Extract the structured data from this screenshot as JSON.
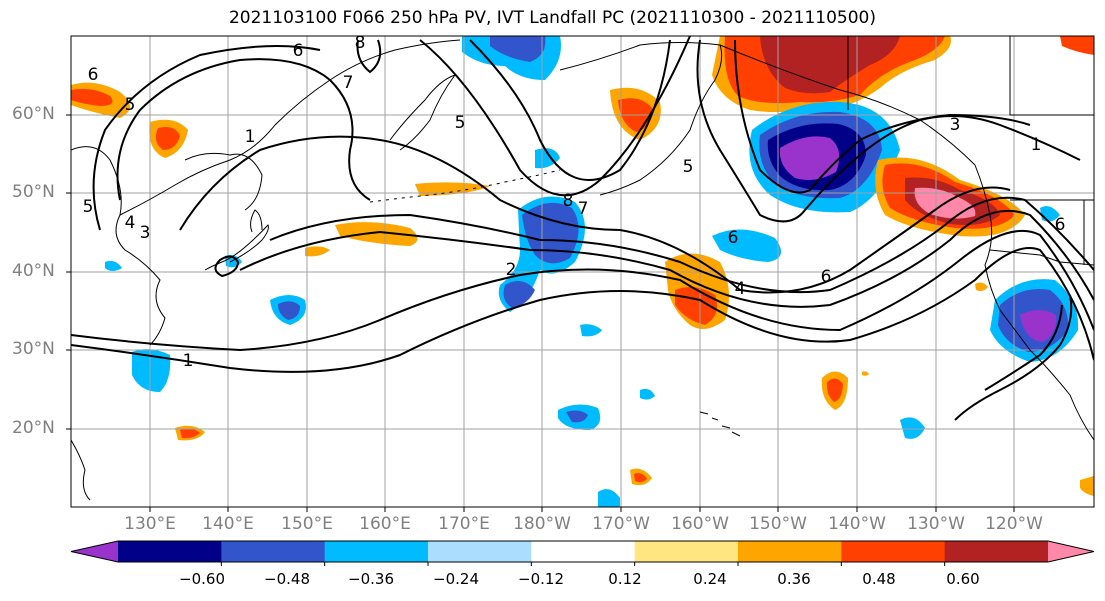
{
  "title": "2021103100 F066 250 hPa PV, IVT Landfall PC (2021110300 - 2021110500)",
  "lat_labels": [
    "60°N",
    "50°N",
    "40°N",
    "30°N",
    "20°N"
  ],
  "lon_labels": [
    "130°E",
    "140°E",
    "150°E",
    "160°E",
    "170°E",
    "180°W",
    "170°W",
    "160°W",
    "150°W",
    "140°W",
    "130°W",
    "120°W"
  ],
  "colorbar": {
    "colors": [
      "#9933cc",
      "#000088",
      "#3355cc",
      "#00bbff",
      "#aaddff",
      "#ffffff",
      "#ffe680",
      "#ffa500",
      "#ff4000",
      "#b22222",
      "#ff88aa"
    ],
    "tick_labels": [
      "−0.60",
      "−0.48",
      "−0.36",
      "−0.24",
      "−0.12",
      "0.12",
      "0.24",
      "0.36",
      "0.48",
      "0.60"
    ]
  },
  "contour_labels": [
    "6",
    "8",
    "7",
    "5",
    "1",
    "5",
    "4",
    "3",
    "6",
    "5",
    "8",
    "7",
    "2",
    "6",
    "4",
    "6",
    "3",
    "1",
    "6",
    "5",
    "1"
  ]
}
